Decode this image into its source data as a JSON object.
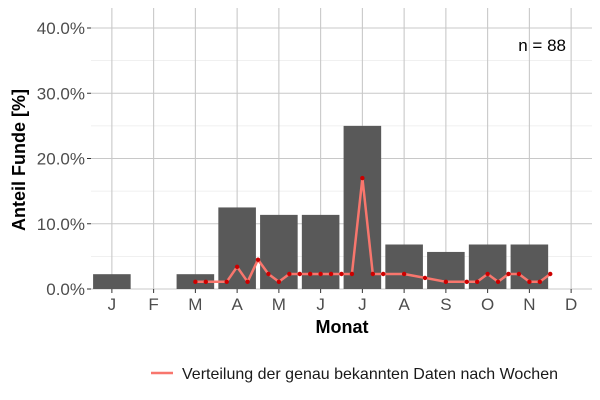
{
  "chart_data": {
    "type": "bar",
    "categories": [
      "J",
      "F",
      "M",
      "A",
      "M",
      "J",
      "J",
      "A",
      "S",
      "O",
      "N",
      "D"
    ],
    "values": [
      2.27,
      0,
      2.27,
      12.5,
      11.36,
      11.36,
      25.0,
      6.82,
      5.68,
      6.82,
      6.82,
      0
    ],
    "xlabel": "Monat",
    "ylabel": "Anteil Funde [%]",
    "ylim": [
      0,
      40
    ],
    "yticks": [
      0,
      10,
      20,
      30,
      40
    ],
    "ytick_labels": [
      "0.0%",
      "10.0%",
      "20.0%",
      "30.0%",
      "40.0%"
    ],
    "annotation": "n = 88",
    "bar_color": "#595959",
    "grid": true,
    "legend_position": "bottom-right",
    "series": [
      {
        "name": "Verteilung der genau bekannten Daten nach Wochen",
        "type": "line",
        "color": "#f8766d",
        "marker_color": "#cc0000",
        "x": [
          3.0,
          3.25,
          3.75,
          4.0,
          4.25,
          4.5,
          4.75,
          5.0,
          5.25,
          5.5,
          5.75,
          6.0,
          6.25,
          6.5,
          6.75,
          7.0,
          7.25,
          7.5,
          8.0,
          8.5,
          9.0,
          9.5,
          9.75,
          10.0,
          10.25,
          10.5,
          10.75,
          11.0,
          11.25,
          11.5
        ],
        "y": [
          1.1,
          1.1,
          1.1,
          3.4,
          1.1,
          4.5,
          2.3,
          1.1,
          2.3,
          2.3,
          2.3,
          2.3,
          2.3,
          2.3,
          2.3,
          17.0,
          2.3,
          2.3,
          2.3,
          1.7,
          1.1,
          1.1,
          1.1,
          2.3,
          1.1,
          2.3,
          2.3,
          1.1,
          1.1,
          2.3
        ]
      }
    ]
  }
}
